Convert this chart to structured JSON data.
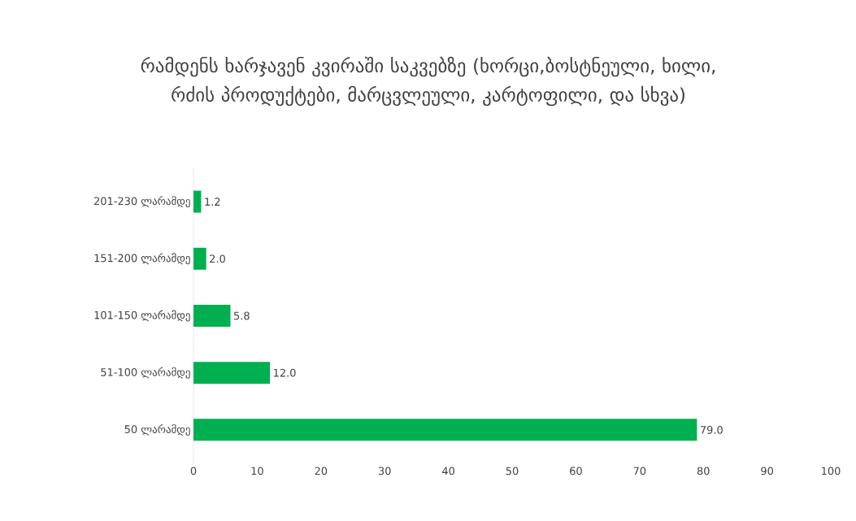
{
  "chart_data": {
    "type": "bar",
    "orientation": "horizontal",
    "title": "რამდენს ხარჯავენ კვირაში საკვებზე (ხორცი,ბოსტნეული, ხილი, რძის პროდუქტები, მარცვლეული, კარტოფილი, და სხვა)",
    "categories": [
      "201-230 ლარამდე",
      "151-200 ლარამდე",
      "101-150 ლარამდე",
      "51-100 ლარამდე",
      "50 ლარამდე"
    ],
    "values": [
      1.2,
      2.0,
      5.8,
      12.0,
      79.0
    ],
    "value_labels": [
      "1.2",
      "2.0",
      "5.8",
      "12.0",
      "79.0"
    ],
    "color": "#00b050",
    "xlim": [
      0,
      100
    ],
    "xticks": [
      0,
      10,
      20,
      30,
      40,
      50,
      60,
      70,
      80,
      90,
      100
    ],
    "grid": false
  }
}
